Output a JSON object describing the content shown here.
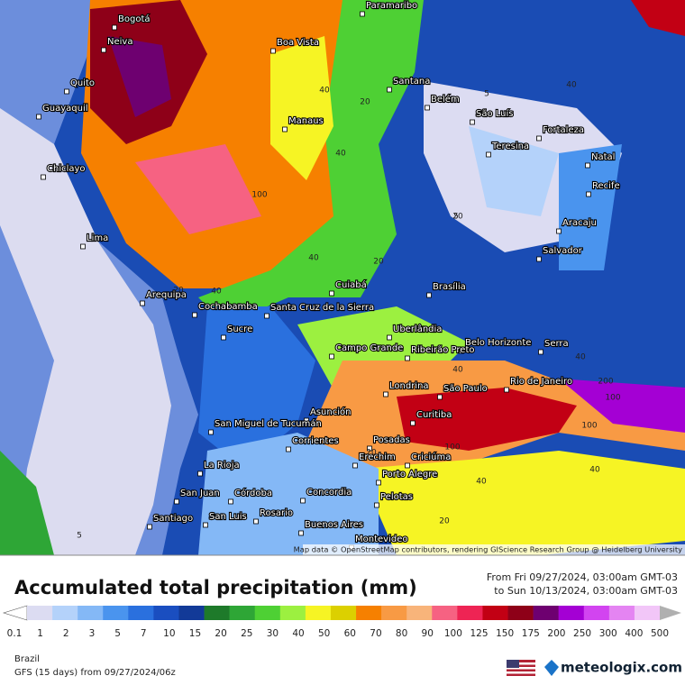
{
  "header": {
    "title": "Accumulated total precipitation (mm)",
    "from": "From Fri 09/27/2024, 03:00am GMT-03",
    "to": "to Sun 10/13/2024, 03:00am GMT-03"
  },
  "map": {
    "attribution": "Map data © OpenStreetMap contributors, rendering GIScience Research Group @ Heidelberg University",
    "cities": [
      "Paramaribo",
      "Bogotá",
      "Neiva",
      "Boa Vista",
      "Quito",
      "Guayaquil",
      "Santana",
      "Belém",
      "São Luís",
      "Manaus",
      "Fortaleza",
      "Teresina",
      "Chiclayo",
      "Natal",
      "Recife",
      "Aracaju",
      "Lima",
      "Salvador",
      "Arequipa",
      "Cuiabá",
      "Brasília",
      "Cochabamba",
      "Santa Cruz de la Sierra",
      "Sucre",
      "Uberlândia",
      "Belo Horizonte",
      "Campo Grande",
      "Ribeirão Preto",
      "Serra",
      "Londrina",
      "São Paulo",
      "Rio de Janeiro",
      "Asunción",
      "Curitiba",
      "San Miguel de Tucumán",
      "Corrientes",
      "Posadas",
      "Erechim",
      "Criciúma",
      "La Rioja",
      "Porto Alegre",
      "San Juan",
      "Córdoba",
      "Concordia",
      "Pelotas",
      "Rosario",
      "Santiago",
      "San Luis",
      "Buenos Aires",
      "Montevideo"
    ],
    "contour_labels": [
      "40",
      "20",
      "5",
      "40",
      "40",
      "100",
      "20",
      "40",
      "20",
      "5",
      "20",
      "40",
      "40",
      "100",
      "200",
      "100",
      "100",
      "40",
      "20",
      "40",
      "20",
      "40",
      "5"
    ]
  },
  "legend": {
    "ticks": [
      0.1,
      1,
      2,
      3,
      5,
      7,
      10,
      15,
      20,
      25,
      30,
      40,
      50,
      60,
      70,
      80,
      90,
      100,
      125,
      150,
      175,
      200,
      250,
      300,
      400,
      500
    ],
    "colors": [
      "#dcdcf2",
      "#b4d2fa",
      "#84b8f6",
      "#4a94ee",
      "#2a70de",
      "#1a4ec0",
      "#123a98",
      "#1e7a2a",
      "#2ea636",
      "#4ed034",
      "#9cf040",
      "#f6f424",
      "#dcd000",
      "#f68000",
      "#f89a44",
      "#f8b47a",
      "#f66282",
      "#ee2454",
      "#c20014",
      "#8e0018",
      "#6e0070",
      "#a400d4",
      "#d244f0",
      "#e484f2",
      "#f2c6f8"
    ],
    "low_color": "#ffffff",
    "high_color": "#b0b0b0"
  },
  "footer": {
    "region": "Brazil",
    "model": "GFS (15 days) from 09/27/2024/06z",
    "brand": "meteologix.com"
  }
}
